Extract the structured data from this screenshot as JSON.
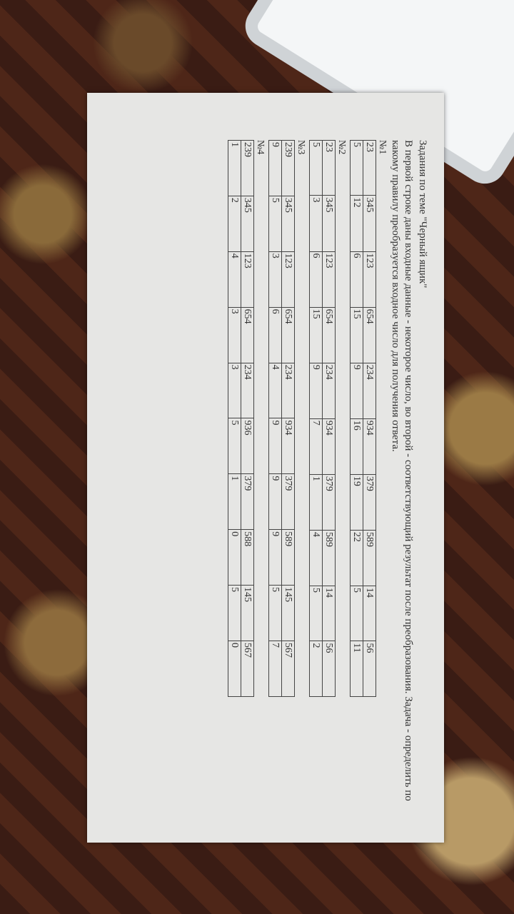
{
  "title": "Задания по теме \"Черный ящик\"",
  "intro": "В первой строке даны входные данные - некоторое число, во второй - соответствующий результат после преобразования. Задача - определить по какому правилу преобразуется входное число для получения ответа.",
  "tasks": [
    {
      "label": "№1",
      "rows": [
        [
          23,
          345,
          123,
          654,
          234,
          934,
          379,
          589,
          14,
          56
        ],
        [
          5,
          12,
          6,
          15,
          9,
          16,
          19,
          22,
          5,
          11
        ]
      ]
    },
    {
      "label": "№2",
      "rows": [
        [
          23,
          345,
          123,
          654,
          234,
          934,
          379,
          589,
          14,
          56
        ],
        [
          5,
          3,
          6,
          15,
          9,
          7,
          1,
          4,
          5,
          2
        ]
      ]
    },
    {
      "label": "№3",
      "rows": [
        [
          239,
          345,
          123,
          654,
          234,
          934,
          379,
          589,
          145,
          567
        ],
        [
          9,
          5,
          3,
          6,
          4,
          9,
          9,
          9,
          5,
          7
        ]
      ]
    },
    {
      "label": "№4",
      "rows": [
        [
          239,
          345,
          123,
          654,
          234,
          936,
          379,
          588,
          145,
          567
        ],
        [
          1,
          2,
          4,
          3,
          3,
          5,
          1,
          0,
          5,
          0
        ]
      ]
    }
  ]
}
